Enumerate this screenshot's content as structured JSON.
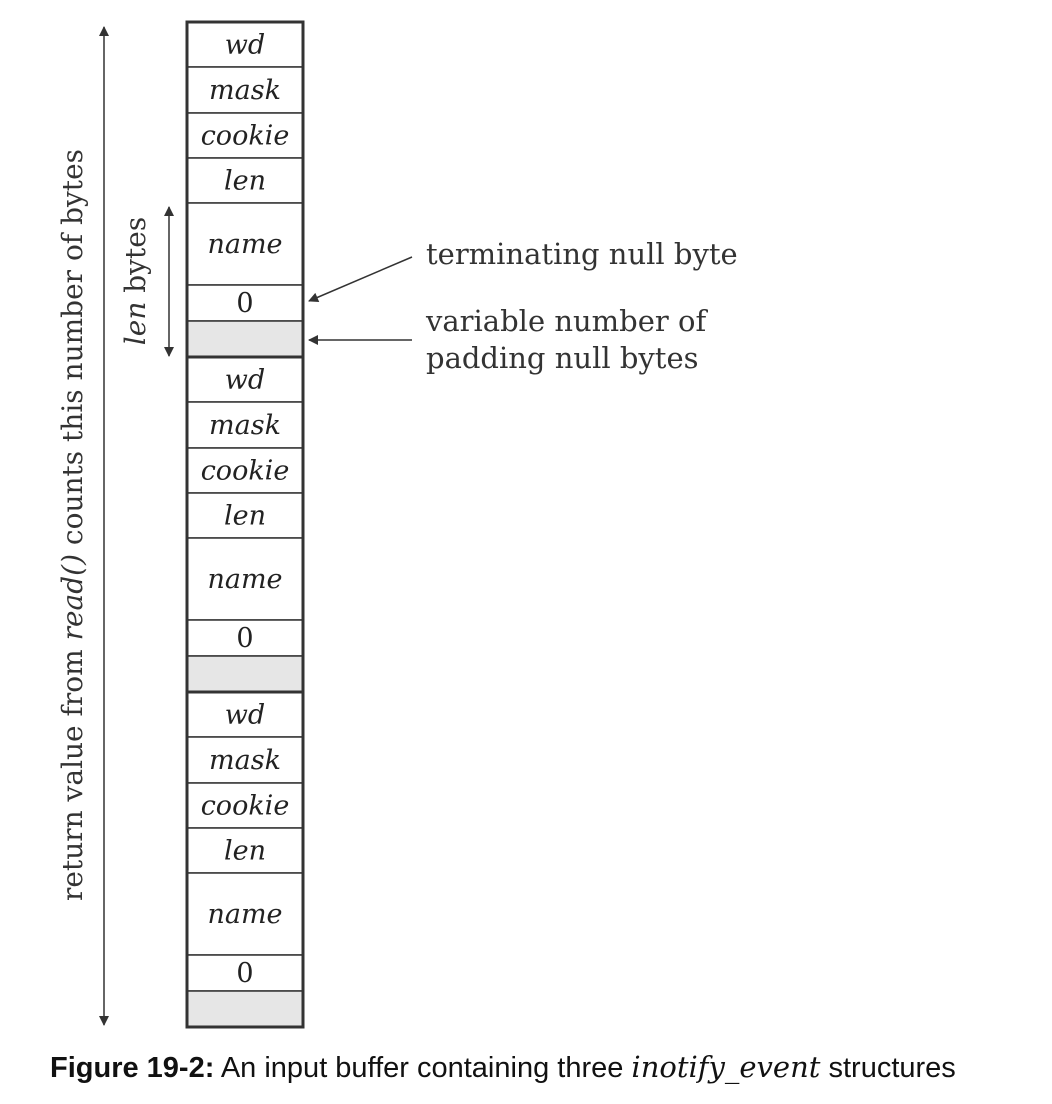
{
  "diagram": {
    "structures": [
      {
        "fields": [
          "wd",
          "mask",
          "cookie",
          "len",
          "name",
          "0",
          ""
        ]
      },
      {
        "fields": [
          "wd",
          "mask",
          "cookie",
          "len",
          "name",
          "0",
          ""
        ]
      },
      {
        "fields": [
          "wd",
          "mask",
          "cookie",
          "len",
          "name",
          "0",
          ""
        ]
      }
    ],
    "annotations": {
      "terminating": "terminating null byte",
      "padding_line1": "variable number of",
      "padding_line2": "padding null bytes"
    },
    "len_label": {
      "italic": "len",
      "rest": " bytes"
    },
    "return_label": {
      "pre": "return value from ",
      "italic": "read()",
      "post": " counts this number of bytes"
    },
    "colors": {
      "stroke": "#333333",
      "padding_fill": "#e6e6e6"
    }
  },
  "caption": {
    "label": "Figure 19-2:",
    "text_pre": " An input buffer containing three ",
    "code": "inotify_event",
    "text_post": " structures"
  }
}
